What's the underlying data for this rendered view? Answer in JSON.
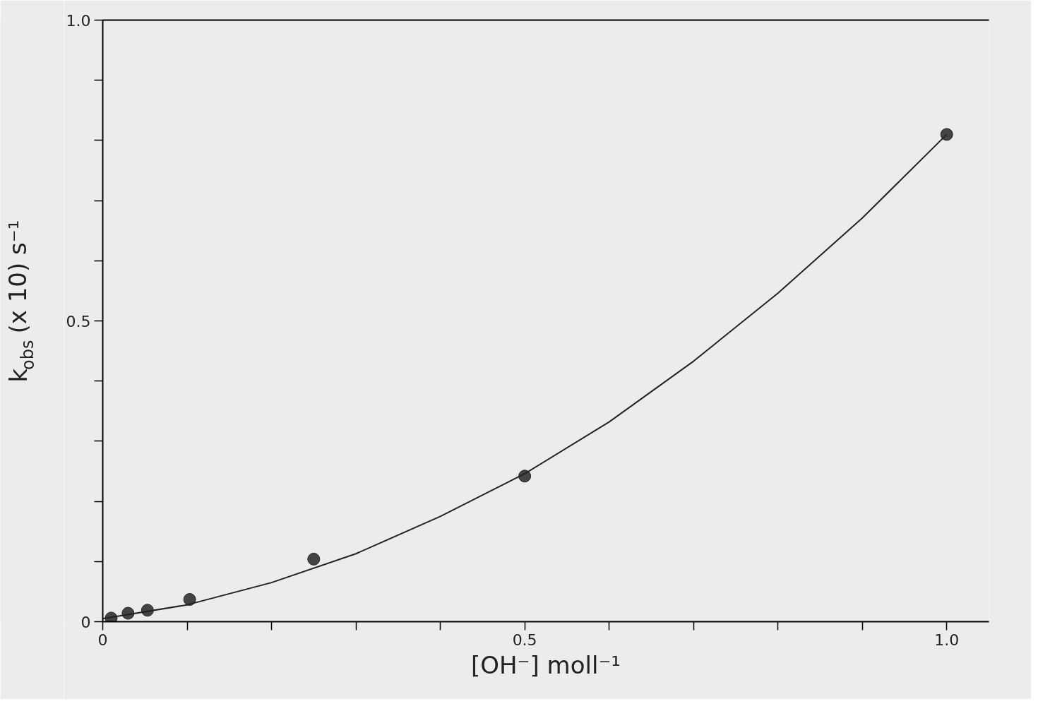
{
  "chart_data": {
    "type": "scatter",
    "xlabel": "[OH⁻] moll⁻¹",
    "ylabel": "k$_{obs}$ (x 10) s⁻¹",
    "x": [
      0.01,
      0.03,
      0.053,
      0.103,
      0.25,
      0.5,
      1.0
    ],
    "series": [
      {
        "color": "#444444",
        "marker": "circle",
        "values": [
          0.006,
          0.014,
          0.019,
          0.037,
          0.104,
          0.242,
          0.81
        ]
      },
      {
        "type": "line",
        "marker": "none",
        "color": "#222222",
        "x": [
          0,
          0.1,
          0.2,
          0.3,
          0.4,
          0.5,
          0.6,
          0.7,
          0.8,
          0.9,
          1.0
        ],
        "values": [
          0.005,
          0.028,
          0.065,
          0.113,
          0.175,
          0.246,
          0.332,
          0.433,
          0.546,
          0.671,
          0.81
        ]
      }
    ],
    "xlim": [
      0,
      1.05
    ],
    "ylim": [
      0,
      1.0
    ],
    "xticks": [
      {
        "value": 0,
        "label": "0"
      },
      {
        "value": 0.1,
        "label": null
      },
      {
        "value": 0.2,
        "label": null
      },
      {
        "value": 0.3,
        "label": null
      },
      {
        "value": 0.4,
        "label": null
      },
      {
        "value": 0.5,
        "label": "0.5"
      },
      {
        "value": 0.6,
        "label": null
      },
      {
        "value": 0.7,
        "label": null
      },
      {
        "value": 0.8,
        "label": null
      },
      {
        "value": 0.9,
        "label": null
      },
      {
        "value": 1.0,
        "label": "1.0"
      }
    ],
    "yticks": [
      {
        "value": 0,
        "label": "0"
      },
      {
        "value": 0.1,
        "label": null
      },
      {
        "value": 0.2,
        "label": null
      },
      {
        "value": 0.3,
        "label": null
      },
      {
        "value": 0.4,
        "label": null
      },
      {
        "value": 0.5,
        "label": "0.5"
      },
      {
        "value": 0.6,
        "label": null
      },
      {
        "value": 0.7,
        "label": null
      },
      {
        "value": 0.8,
        "label": null
      },
      {
        "value": 0.9,
        "label": null
      },
      {
        "value": 1.0,
        "label": "1.0"
      }
    ],
    "grid": false,
    "line_style": "solid"
  }
}
